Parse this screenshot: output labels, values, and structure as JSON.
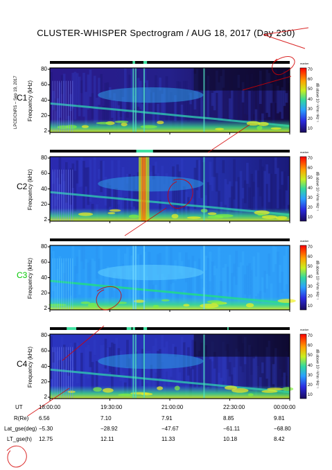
{
  "title": "CLUSTER-WHISPER Spectrogram / AUG 18, 2017 (Day 230)",
  "credit": "LPCE/CNRS – Sep 19, 2017",
  "chart_data": [
    {
      "type": "heatmap",
      "panel": "C1",
      "ylabel": "Frequency (kHz)",
      "yticks": [
        "80",
        "60",
        "40",
        "20",
        "2"
      ],
      "ylim": [
        2,
        80
      ],
      "colorbar": {
        "label": "dB above 10⁻⁸V²m⁻²Hz⁻¹",
        "ticks": [
          "70",
          "60",
          "50",
          "40",
          "30",
          "20",
          "10"
        ],
        "marker": "marker"
      }
    },
    {
      "type": "heatmap",
      "panel": "C2",
      "ylabel": "Frequency (kHz)",
      "yticks": [
        "80",
        "60",
        "40",
        "20",
        "2"
      ],
      "ylim": [
        2,
        80
      ],
      "colorbar": {
        "label": "dB above 10⁻⁸V²m⁻²Hz⁻¹",
        "ticks": [
          "70",
          "60",
          "50",
          "40",
          "30",
          "20",
          "10"
        ],
        "marker": "marker"
      }
    },
    {
      "type": "heatmap",
      "panel": "C3",
      "ylabel": "Frequency (kHz)",
      "yticks": [
        "80",
        "60",
        "40",
        "20",
        "2"
      ],
      "ylim": [
        2,
        80
      ],
      "colorbar": {
        "label": "dB above 10⁻⁸V²m⁻²Hz⁻¹",
        "ticks": [
          "70",
          "60",
          "50",
          "40",
          "30",
          "20",
          "10"
        ],
        "marker": "marker"
      }
    },
    {
      "type": "heatmap",
      "panel": "C4",
      "ylabel": "Frequency (kHz)",
      "yticks": [
        "80",
        "60",
        "40",
        "20",
        "2"
      ],
      "ylim": [
        2,
        80
      ],
      "colorbar": {
        "label": "dB above 10⁻⁸V²m⁻²Hz⁻¹",
        "ticks": [
          "70",
          "60",
          "50",
          "40",
          "30",
          "20",
          "10"
        ],
        "marker": "marker"
      }
    }
  ],
  "panels": [
    {
      "label": "C1",
      "color": "#000000"
    },
    {
      "label": "C2",
      "color": "#000000"
    },
    {
      "label": "C3",
      "color": "#00c800"
    },
    {
      "label": "C4",
      "color": "#000000"
    }
  ],
  "ephemeris": {
    "labels": [
      "UT",
      "R(Re)",
      "Lat_gse(deg)",
      "LT_gse(h)"
    ],
    "columns": [
      [
        "18:00:00",
        "6.56",
        "−5.30",
        "12.75"
      ],
      [
        "19:30:00",
        "7.10",
        "−28.92",
        "12.11"
      ],
      [
        "21:00:00",
        "7.91",
        "−47.67",
        "11.33"
      ],
      [
        "22:30:00",
        "8.85",
        "−61.11",
        "10.18"
      ],
      [
        "00:00:00",
        "9.81",
        "−68.80",
        "8.42"
      ]
    ]
  },
  "colors": {
    "background_low": "#1a1a8c",
    "mid": "#3aa0ff",
    "high": "#ffe000",
    "peak": "#ff2000",
    "watermark": "#d40000"
  }
}
